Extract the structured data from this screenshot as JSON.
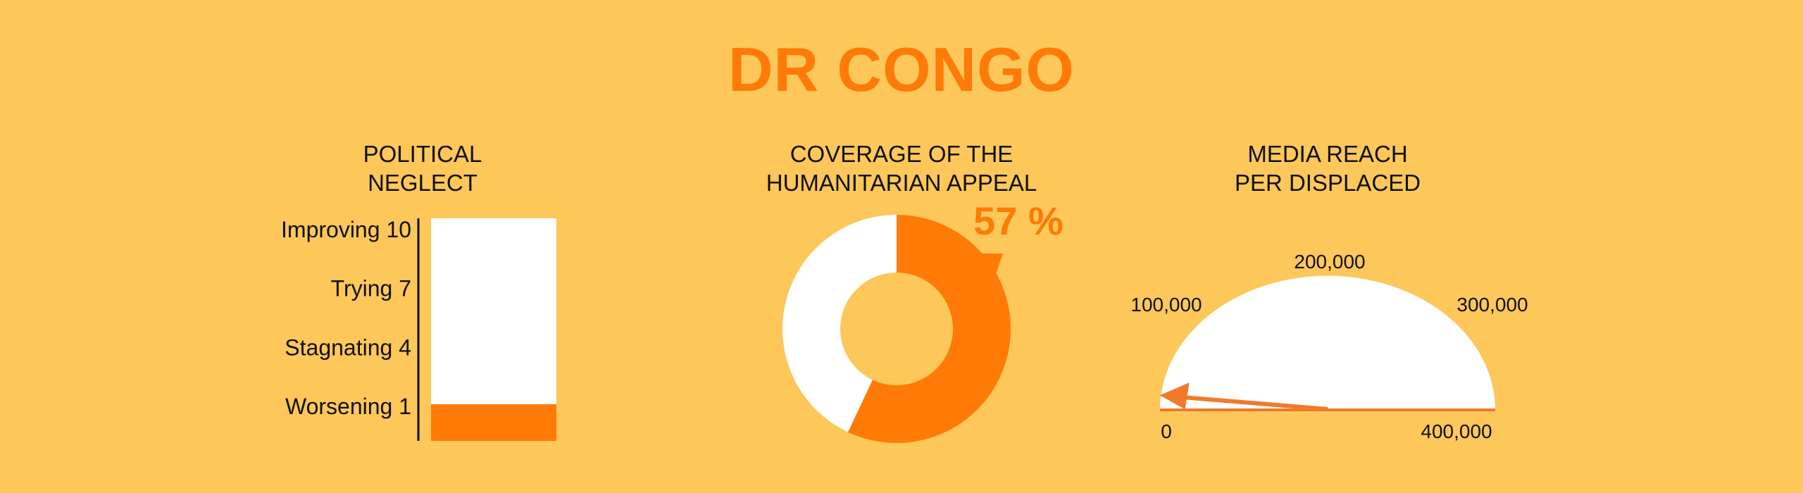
{
  "title": "DR CONGO",
  "colors": {
    "background": "#FDC75A",
    "accent": "#FF7A06",
    "blank": "#FFFFFF",
    "text": "#111111",
    "gauge_arrow": "#F07A2A"
  },
  "charts": [
    {
      "type": "bar",
      "heading": "POLITICAL\nNEGLECT",
      "scale": [
        {
          "label": "Improving",
          "value": 10
        },
        {
          "label": "Trying",
          "value": 7
        },
        {
          "label": "Stagnating",
          "value": 4
        },
        {
          "label": "Worsening",
          "value": 1
        }
      ],
      "ylim": [
        0,
        10
      ],
      "value": 1
    },
    {
      "type": "pie",
      "heading": "COVERAGE OF THE\nHUMANITARIAN APPEAL",
      "value": 57,
      "value_label": "57 %"
    },
    {
      "type": "gauge",
      "heading": "MEDIA REACH\nPER DISPLACED",
      "ticks": [
        "0",
        "100,000",
        "200,000",
        "300,000",
        "400,000"
      ],
      "range": [
        0,
        400000
      ],
      "value": 15000
    }
  ],
  "chart_data": [
    {
      "type": "bar",
      "categories": [
        "DR CONGO"
      ],
      "values": [
        1
      ],
      "ylim": [
        0,
        10
      ],
      "tick_labels": [
        "Improving 10",
        "Trying 7",
        "Stagnating 4",
        "Worsening 1"
      ]
    },
    {
      "type": "pie",
      "values": [
        57,
        43
      ],
      "data_label": "57 %"
    },
    {
      "type": "gauge",
      "value": 15000,
      "range": [
        0,
        400000
      ],
      "tick_labels": [
        "0",
        "100,000",
        "200,000",
        "300,000",
        "400,000"
      ]
    }
  ]
}
